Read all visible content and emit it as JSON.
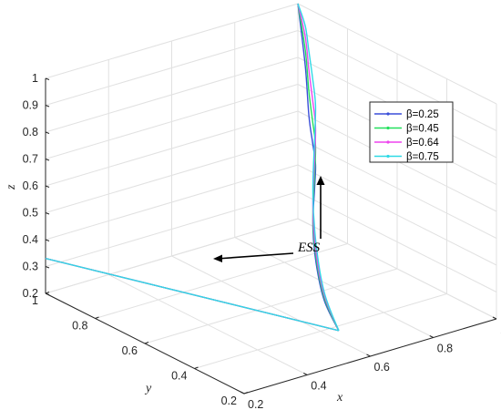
{
  "chart_data": {
    "type": "line",
    "projection": "3d",
    "xlabel": "x",
    "ylabel": "y",
    "zlabel": "z",
    "xlim": [
      0.2,
      1
    ],
    "ylim": [
      0.2,
      1
    ],
    "zlim": [
      0.2,
      1
    ],
    "x_ticks": [
      "0.2",
      "0.4",
      "0.6",
      "0.8",
      "1"
    ],
    "y_ticks": [
      "0.2",
      "0.4",
      "0.6",
      "0.8",
      "1"
    ],
    "z_ticks": [
      "0.2",
      "0.3",
      "0.4",
      "0.5",
      "0.6",
      "0.7",
      "0.8",
      "0.9",
      "1"
    ],
    "grid": true,
    "legend_position": "right",
    "annotation": "ESS",
    "series": [
      {
        "name": "β=0.25",
        "color": "#3a4fd8",
        "x": [
          0.5,
          0.58,
          0.68,
          0.78,
          0.88,
          0.93,
          0.96,
          0.98,
          1,
          1
        ],
        "y": [
          0.2,
          0.36,
          0.52,
          0.66,
          0.78,
          0.84,
          0.89,
          0.93,
          0.97,
          1
        ],
        "z": [
          0.33,
          0.34,
          0.37,
          0.41,
          0.46,
          0.5,
          0.55,
          0.62,
          0.78,
          1
        ]
      },
      {
        "name": "β=0.45",
        "color": "#22e05c",
        "x": [
          0.5,
          0.58,
          0.68,
          0.78,
          0.88,
          0.93,
          0.96,
          0.98,
          1,
          1
        ],
        "y": [
          0.2,
          0.36,
          0.52,
          0.66,
          0.78,
          0.84,
          0.89,
          0.93,
          0.97,
          1
        ],
        "z": [
          0.33,
          0.35,
          0.39,
          0.44,
          0.51,
          0.57,
          0.63,
          0.71,
          0.84,
          1
        ]
      },
      {
        "name": "β=0.64",
        "color": "#ee44ee",
        "x": [
          0.5,
          0.58,
          0.68,
          0.78,
          0.88,
          0.93,
          0.96,
          0.98,
          1,
          1
        ],
        "y": [
          0.2,
          0.36,
          0.52,
          0.66,
          0.78,
          0.84,
          0.89,
          0.93,
          0.97,
          1
        ],
        "z": [
          0.33,
          0.36,
          0.41,
          0.48,
          0.57,
          0.64,
          0.71,
          0.79,
          0.89,
          1
        ]
      },
      {
        "name": "β=0.75",
        "color": "#2fd9e6",
        "x": [
          0.5,
          0.58,
          0.68,
          0.78,
          0.88,
          0.93,
          0.96,
          0.98,
          1,
          1
        ],
        "y": [
          0.2,
          0.36,
          0.52,
          0.66,
          0.78,
          0.84,
          0.89,
          0.93,
          0.97,
          1
        ],
        "z": [
          0.33,
          0.37,
          0.44,
          0.53,
          0.64,
          0.72,
          0.79,
          0.86,
          0.93,
          1
        ]
      }
    ],
    "shared_start_branch": {
      "x": [
        0.2,
        0.5
      ],
      "y": [
        1,
        0.2
      ],
      "z": [
        0.33,
        0.33
      ]
    }
  }
}
